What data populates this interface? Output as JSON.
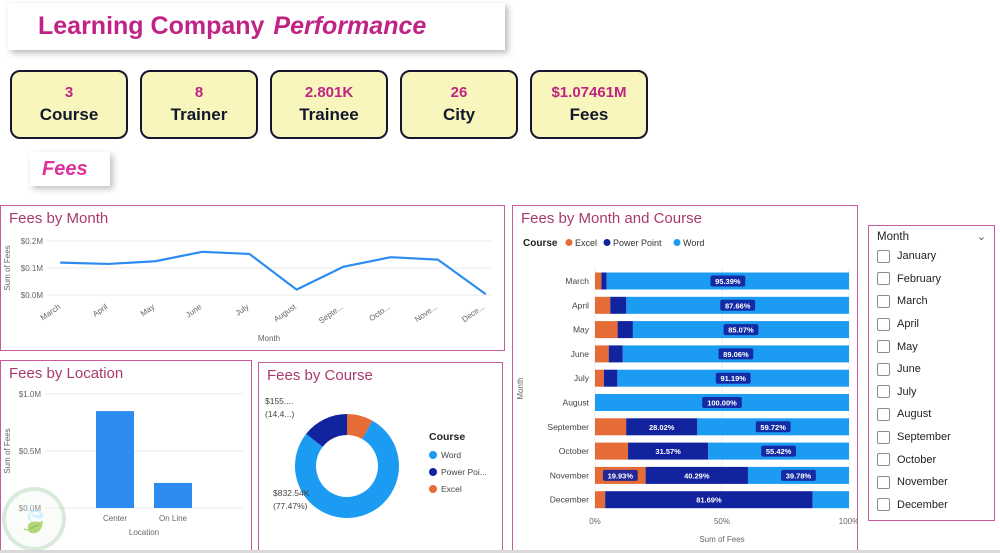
{
  "header": {
    "title_regular": "Learning Company",
    "title_italic": "Performance"
  },
  "kpis": [
    {
      "value": "3",
      "label": "Course"
    },
    {
      "value": "8",
      "label": "Trainer"
    },
    {
      "value": "2.801K",
      "label": "Trainee"
    },
    {
      "value": "26",
      "label": "City"
    },
    {
      "value": "$1.07461M",
      "label": "Fees"
    }
  ],
  "section_label": "Fees",
  "colors": {
    "accent": "#C02383",
    "chart_title": "#A93A6E",
    "card_yellow": "#F8F6BC",
    "card_border": "#15152E",
    "panel_border": "#C75A9E",
    "line_blue": "#2D8CF0",
    "word_blue": "#1C9BF2",
    "powerpoint_navy": "#12239E",
    "excel_orange": "#E66C37"
  },
  "chart_data": [
    {
      "id": "fees_by_month",
      "type": "line",
      "title": "Fees by Month",
      "xlabel": "Month",
      "ylabel": "Sum of Fees",
      "categories": [
        "March",
        "April",
        "May",
        "June",
        "July",
        "August",
        "Septe...",
        "Octo...",
        "Nove...",
        "Dece..."
      ],
      "values_millions": [
        0.12,
        0.115,
        0.125,
        0.16,
        0.152,
        0.02,
        0.105,
        0.14,
        0.131,
        0.005
      ],
      "yticks": [
        "$0.0M",
        "$0.1M",
        "$0.2M"
      ],
      "ylim": [
        0,
        0.2
      ],
      "grid": true,
      "line_color": "line_blue"
    },
    {
      "id": "fees_by_location",
      "type": "bar",
      "title": "Fees by Location",
      "xlabel": "Location",
      "ylabel": "Sum of Fees",
      "categories": [
        "Center",
        "On Line"
      ],
      "values_millions": [
        0.85,
        0.22
      ],
      "yticks": [
        "$0.0M",
        "$0.5M",
        "$1.0M"
      ],
      "ylim": [
        0,
        1.0
      ],
      "grid": true,
      "bar_color": "line_blue"
    },
    {
      "id": "fees_by_course",
      "type": "pie",
      "title": "Fees by Course",
      "legend_title": "Course",
      "legend": [
        {
          "label": "Word",
          "color": "word_blue"
        },
        {
          "label": "Power Poi...",
          "color": "powerpoint_navy"
        },
        {
          "label": "Excel",
          "color": "excel_orange"
        }
      ],
      "slices": [
        {
          "name": "Excel",
          "pct": 8.13,
          "color": "excel_orange"
        },
        {
          "name": "Word",
          "pct": 77.47,
          "color": "word_blue"
        },
        {
          "name": "Power Point",
          "pct": 14.4,
          "color": "powerpoint_navy"
        }
      ],
      "callouts": [
        {
          "lines": [
            "$155....",
            "(14,4...)"
          ]
        },
        {
          "lines": [
            "$832.54K",
            "(77.47%)"
          ]
        }
      ]
    },
    {
      "id": "fees_by_month_course",
      "type": "stacked-bar",
      "title": "Fees by Month and Course",
      "legend_title": "Course",
      "legend": [
        {
          "label": "Excel",
          "color": "excel_orange"
        },
        {
          "label": "Power Point",
          "color": "powerpoint_navy"
        },
        {
          "label": "Word",
          "color": "word_blue"
        }
      ],
      "xlabel": "Sum of Fees",
      "ylabel": "Month",
      "xticks": [
        "0%",
        "50%",
        "100%"
      ],
      "xlim": [
        0,
        100
      ],
      "rows": [
        {
          "month": "March",
          "segments": [
            {
              "course": "Excel",
              "pct": 2.51,
              "label": ""
            },
            {
              "course": "Power Point",
              "pct": 2.1,
              "label": ""
            },
            {
              "course": "Word",
              "pct": 95.39,
              "label": "95.39%"
            }
          ]
        },
        {
          "month": "April",
          "segments": [
            {
              "course": "Excel",
              "pct": 6.0,
              "label": ""
            },
            {
              "course": "Power Point",
              "pct": 6.34,
              "label": ""
            },
            {
              "course": "Word",
              "pct": 87.66,
              "label": "87.66%"
            }
          ]
        },
        {
          "month": "May",
          "segments": [
            {
              "course": "Excel",
              "pct": 8.9,
              "label": ""
            },
            {
              "course": "Power Point",
              "pct": 6.03,
              "label": ""
            },
            {
              "course": "Word",
              "pct": 85.07,
              "label": "85.07%"
            }
          ]
        },
        {
          "month": "June",
          "segments": [
            {
              "course": "Excel",
              "pct": 5.4,
              "label": ""
            },
            {
              "course": "Power Point",
              "pct": 5.54,
              "label": ""
            },
            {
              "course": "Word",
              "pct": 89.06,
              "label": "89.06%"
            }
          ]
        },
        {
          "month": "July",
          "segments": [
            {
              "course": "Excel",
              "pct": 3.5,
              "label": ""
            },
            {
              "course": "Power Point",
              "pct": 5.31,
              "label": ""
            },
            {
              "course": "Word",
              "pct": 91.19,
              "label": "91.19%"
            }
          ]
        },
        {
          "month": "August",
          "segments": [
            {
              "course": "Excel",
              "pct": 0,
              "label": ""
            },
            {
              "course": "Power Point",
              "pct": 0,
              "label": ""
            },
            {
              "course": "Word",
              "pct": 100.0,
              "label": "100.00%"
            }
          ]
        },
        {
          "month": "September",
          "segments": [
            {
              "course": "Excel",
              "pct": 12.26,
              "label": ""
            },
            {
              "course": "Power Point",
              "pct": 28.02,
              "label": "28.02%"
            },
            {
              "course": "Word",
              "pct": 59.72,
              "label": "59.72%"
            }
          ]
        },
        {
          "month": "October",
          "segments": [
            {
              "course": "Excel",
              "pct": 13.01,
              "label": ""
            },
            {
              "course": "Power Point",
              "pct": 31.57,
              "label": "31.57%"
            },
            {
              "course": "Word",
              "pct": 55.42,
              "label": "55.42%"
            }
          ]
        },
        {
          "month": "November",
          "segments": [
            {
              "course": "Excel",
              "pct": 19.93,
              "label": "19.93%"
            },
            {
              "course": "Power Point",
              "pct": 40.29,
              "label": "40.29%"
            },
            {
              "course": "Word",
              "pct": 39.78,
              "label": "39.78%"
            }
          ]
        },
        {
          "month": "December",
          "segments": [
            {
              "course": "Excel",
              "pct": 4.0,
              "label": ""
            },
            {
              "course": "Power Point",
              "pct": 81.69,
              "label": "81.69%"
            },
            {
              "course": "Word",
              "pct": 14.31,
              "label": ""
            }
          ]
        }
      ]
    }
  ],
  "slicer": {
    "header": "Month",
    "options": [
      "January",
      "February",
      "March",
      "April",
      "May",
      "June",
      "July",
      "August",
      "September",
      "October",
      "November",
      "December"
    ],
    "checked": []
  }
}
